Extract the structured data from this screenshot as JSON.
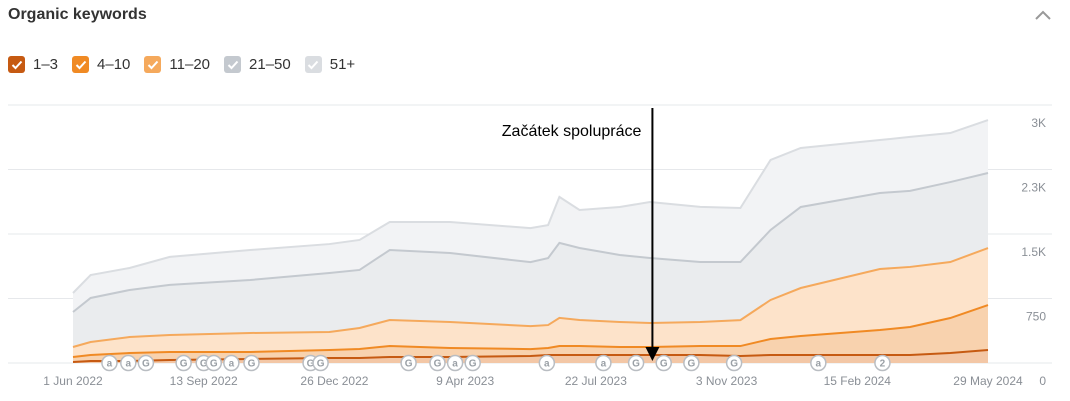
{
  "header": {
    "title": "Organic keywords"
  },
  "chart_data": {
    "type": "stacked-area",
    "x": [
      "2022-06-01",
      "2022-06-15",
      "2022-07-16",
      "2022-08-17",
      "2022-10-20",
      "2022-12-22",
      "2023-01-15",
      "2023-02-08",
      "2023-03-28",
      "2023-05-31",
      "2023-06-14",
      "2023-06-23",
      "2023-07-09",
      "2023-08-10",
      "2023-09-03",
      "2023-10-13",
      "2023-11-14",
      "2023-12-08",
      "2024-01-01",
      "2024-03-04",
      "2024-03-28",
      "2024-04-29",
      "2024-05-29"
    ],
    "series": [
      {
        "name": "1–3",
        "color": "#c65a12",
        "fill": "#f3c7a6",
        "values": [
          12,
          23,
          23,
          35,
          47,
          58,
          58,
          70,
          70,
          81,
          93,
          93,
          93,
          93,
          93,
          93,
          81,
          93,
          93,
          93,
          93,
          116,
          151
        ]
      },
      {
        "name": "4–10",
        "color": "#f08a24",
        "fill": "#f8d2ae",
        "values": [
          58,
          70,
          93,
          93,
          81,
          93,
          105,
          128,
          105,
          81,
          81,
          105,
          105,
          93,
          93,
          105,
          116,
          186,
          221,
          291,
          326,
          407,
          523
        ]
      },
      {
        "name": "11–20",
        "color": "#f5a95c",
        "fill": "#fde3ca",
        "values": [
          116,
          151,
          186,
          198,
          221,
          209,
          244,
          302,
          302,
          267,
          267,
          326,
          302,
          291,
          279,
          279,
          302,
          454,
          558,
          709,
          698,
          651,
          663
        ]
      },
      {
        "name": "21–50",
        "color": "#c4c9cf",
        "fill": "#eaecee",
        "values": [
          407,
          512,
          547,
          582,
          616,
          686,
          675,
          814,
          802,
          744,
          779,
          872,
          837,
          779,
          756,
          698,
          675,
          814,
          942,
          884,
          884,
          930,
          872
        ]
      },
      {
        "name": "51+",
        "color": "#dadde1",
        "fill": "#f2f3f5",
        "values": [
          221,
          267,
          256,
          326,
          349,
          337,
          349,
          326,
          361,
          395,
          384,
          535,
          442,
          558,
          651,
          640,
          628,
          814,
          686,
          616,
          628,
          570,
          616
        ]
      }
    ],
    "xlim": [
      "2022-06-01",
      "2024-05-29"
    ],
    "xticks": [
      {
        "value": "2022-06-01",
        "label": "1 Jun 2022"
      },
      {
        "value": "2022-09-13",
        "label": "13 Sep 2022"
      },
      {
        "value": "2022-12-26",
        "label": "26 Dec 2022"
      },
      {
        "value": "2023-04-09",
        "label": "9 Apr 2023"
      },
      {
        "value": "2023-07-22",
        "label": "22 Jul 2023"
      },
      {
        "value": "2023-11-03",
        "label": "3 Nov 2023"
      },
      {
        "value": "2024-02-15",
        "label": "15 Feb 2024"
      },
      {
        "value": "2024-05-29",
        "label": "29 May 2024"
      }
    ],
    "ylim": [
      0,
      3000
    ],
    "yticks": [
      0,
      750,
      {
        "value": 1500,
        "label": "1.5K"
      },
      {
        "value": 2250,
        "label": "2.3K"
      },
      {
        "value": 3000,
        "label": "3K"
      }
    ],
    "grid": true,
    "annotation": {
      "text": "Začátek spolupráce",
      "x": "2023-09-05"
    },
    "events": [
      {
        "x": "2022-06-30",
        "label": "a"
      },
      {
        "x": "2022-07-15",
        "label": "a"
      },
      {
        "x": "2022-07-29",
        "label": "G"
      },
      {
        "x": "2022-08-28",
        "label": "G"
      },
      {
        "x": "2022-09-13",
        "label": "G"
      },
      {
        "x": "2022-09-21",
        "label": "G"
      },
      {
        "x": "2022-10-05",
        "label": "a"
      },
      {
        "x": "2022-10-21",
        "label": "G"
      },
      {
        "x": "2022-12-07",
        "label": "G"
      },
      {
        "x": "2022-12-15",
        "label": "G"
      },
      {
        "x": "2023-02-23",
        "label": "G"
      },
      {
        "x": "2023-03-18",
        "label": "G"
      },
      {
        "x": "2023-04-01",
        "label": "a"
      },
      {
        "x": "2023-04-15",
        "label": "G"
      },
      {
        "x": "2023-06-13",
        "label": "a"
      },
      {
        "x": "2023-07-28",
        "label": "a"
      },
      {
        "x": "2023-08-23",
        "label": "G"
      },
      {
        "x": "2023-09-14",
        "label": "G"
      },
      {
        "x": "2023-10-06",
        "label": "G"
      },
      {
        "x": "2023-11-09",
        "label": "G"
      },
      {
        "x": "2024-01-15",
        "label": "a"
      },
      {
        "x": "2024-03-06",
        "label": "2"
      }
    ]
  }
}
